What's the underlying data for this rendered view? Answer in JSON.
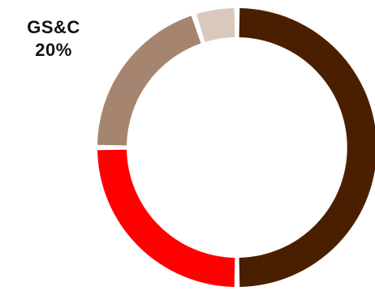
{
  "chart_data": {
    "type": "pie",
    "donut": true,
    "categories": [
      "",
      "",
      "GS&C",
      ""
    ],
    "values": [
      50,
      25,
      20,
      5
    ],
    "colors": [
      "#4a1f00",
      "#ff0000",
      "#a58470",
      "#dbc8bd"
    ],
    "annotations": [
      {
        "category": "GS&C",
        "text": "GS&C",
        "value_label": "20%"
      }
    ],
    "title": "",
    "legend": "none"
  }
}
